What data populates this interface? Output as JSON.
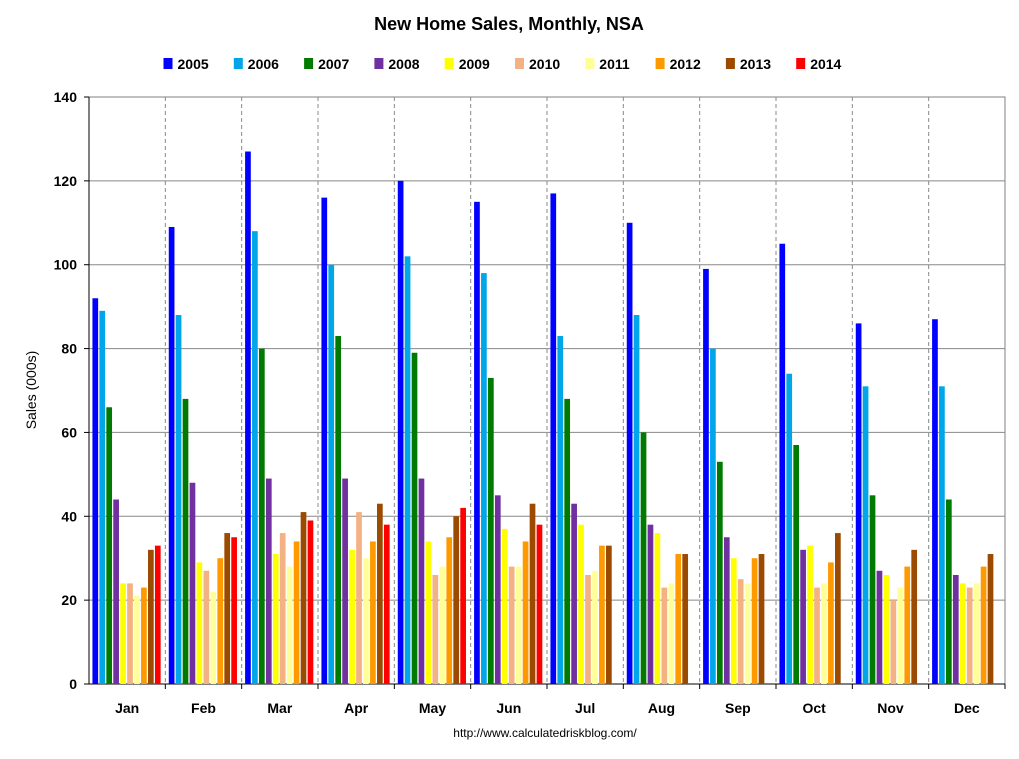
{
  "chart_data": {
    "type": "bar",
    "title": "New Home Sales, Monthly, NSA",
    "ylabel": "Sales (000s)",
    "xlabel": "",
    "source": "http://www.calculatedriskblog.com/",
    "ylim": [
      0,
      140
    ],
    "yticks": [
      0,
      20,
      40,
      60,
      80,
      100,
      120,
      140
    ],
    "grid": true,
    "legend_position": "top",
    "categories": [
      "Jan",
      "Feb",
      "Mar",
      "Apr",
      "May",
      "Jun",
      "Jul",
      "Aug",
      "Sep",
      "Oct",
      "Nov",
      "Dec"
    ],
    "series": [
      {
        "name": "2005",
        "color": "#0000ff",
        "values": [
          92,
          109,
          127,
          116,
          120,
          115,
          117,
          110,
          99,
          105,
          86,
          87
        ]
      },
      {
        "name": "2006",
        "color": "#00a6e8",
        "values": [
          89,
          88,
          108,
          100,
          102,
          98,
          83,
          88,
          80,
          74,
          71,
          71
        ]
      },
      {
        "name": "2007",
        "color": "#007a00",
        "values": [
          66,
          68,
          80,
          83,
          79,
          73,
          68,
          60,
          53,
          57,
          45,
          44
        ]
      },
      {
        "name": "2008",
        "color": "#7030a0",
        "values": [
          44,
          48,
          49,
          49,
          49,
          45,
          43,
          38,
          35,
          32,
          27,
          26
        ]
      },
      {
        "name": "2009",
        "color": "#ffff00",
        "values": [
          24,
          29,
          31,
          32,
          34,
          37,
          38,
          36,
          30,
          33,
          26,
          24
        ]
      },
      {
        "name": "2010",
        "color": "#f4b183",
        "values": [
          24,
          27,
          36,
          41,
          26,
          28,
          26,
          23,
          25,
          23,
          20,
          23
        ]
      },
      {
        "name": "2011",
        "color": "#ffff99",
        "values": [
          21,
          22,
          28,
          30,
          28,
          28,
          27,
          24,
          24,
          24,
          23,
          24
        ]
      },
      {
        "name": "2012",
        "color": "#ff9900",
        "values": [
          23,
          30,
          34,
          34,
          35,
          34,
          33,
          31,
          30,
          29,
          28,
          28
        ]
      },
      {
        "name": "2013",
        "color": "#9c4a00",
        "values": [
          32,
          36,
          41,
          43,
          40,
          43,
          33,
          31,
          31,
          36,
          32,
          31
        ]
      },
      {
        "name": "2014",
        "color": "#ff0000",
        "values": [
          33,
          35,
          39,
          38,
          42,
          38,
          null,
          null,
          null,
          null,
          null,
          null
        ]
      }
    ]
  }
}
